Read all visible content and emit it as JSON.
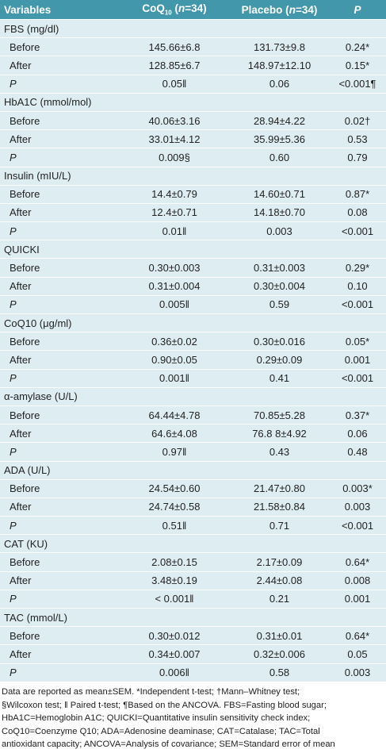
{
  "table": {
    "header": {
      "variables": "Variables",
      "coq": "CoQ",
      "coq_sub": "10",
      "open": " (",
      "n1": "n",
      "count1": "=34)",
      "placebo": "Placebo (",
      "n2": "n",
      "count2": "=34)",
      "p": "P"
    },
    "groups": [
      {
        "title": "FBS (mg/dl)",
        "rows": [
          [
            "Before",
            "145.66±6.8",
            "131.73±9.8",
            "0.24*"
          ],
          [
            "After",
            "128.85±6.7",
            "148.97±12.10",
            "0.15*"
          ],
          [
            "P",
            "0.05‖",
            "0.06",
            "<0.001¶"
          ]
        ]
      },
      {
        "title": "HbA1C (mmol/mol)",
        "rows": [
          [
            "Before",
            "40.06±3.16",
            "28.94±4.22",
            "0.02†"
          ],
          [
            "After",
            "33.01±4.12",
            "35.99±5.36",
            "0.53"
          ],
          [
            "P",
            "0.009§",
            "0.60",
            "0.79"
          ]
        ]
      },
      {
        "title": "Insulin (mIU/L)",
        "rows": [
          [
            "Before",
            "14.4±0.79",
            "14.60±0.71",
            "0.87*"
          ],
          [
            "After",
            "12.4±0.71",
            "14.18±0.70",
            "0.08"
          ],
          [
            "P",
            "0.01‖",
            "0.003",
            "<0.001"
          ]
        ]
      },
      {
        "title": "QUICKI",
        "rows": [
          [
            "Before",
            "0.30±0.003",
            "0.31±0.003",
            "0.29*"
          ],
          [
            "After",
            "0.31±0.004",
            "0.30±0.004",
            "0.10"
          ],
          [
            "P",
            "0.005‖",
            "0.59",
            "<0.001"
          ]
        ]
      },
      {
        "title": "CoQ10 (μg/ml)",
        "rows": [
          [
            "Before",
            "0.36±0.02",
            "0.30±0.016",
            "0.05*"
          ],
          [
            "After",
            "0.90±0.05",
            "0.29±0.09",
            "0.001"
          ],
          [
            "P",
            "0.001‖",
            "0.41",
            "<0.001"
          ]
        ]
      },
      {
        "title": "α-amylase (U/L)",
        "rows": [
          [
            "Before",
            "64.44±4.78",
            "70.85±5.28",
            "0.37*"
          ],
          [
            "After",
            "64.6±4.08",
            "76.8 8±4.92",
            "0.06"
          ],
          [
            "P",
            "0.97‖",
            "0.43",
            "0.48"
          ]
        ]
      },
      {
        "title": "ADA (U/L)",
        "rows": [
          [
            "Before",
            "24.54±0.60",
            "21.47±0.80",
            "0.003*"
          ],
          [
            "After",
            "24.74±0.58",
            "21.58±0.84",
            "0.003"
          ],
          [
            "P",
            "0.51‖",
            "0.71",
            "<0.001"
          ]
        ]
      },
      {
        "title": "CAT (KU)",
        "rows": [
          [
            "Before",
            "2.08±0.15",
            "2.17±0.09",
            "0.64*"
          ],
          [
            "After",
            "3.48±0.19",
            "2.44±0.08",
            "0.008"
          ],
          [
            "P",
            "< 0.001‖",
            "0.21",
            "0.001"
          ]
        ]
      },
      {
        "title": "TAC (mmol/L)",
        "rows": [
          [
            "Before",
            "0.30±0.012",
            "0.31±0.01",
            "0.64*"
          ],
          [
            "After",
            "0.34±0.007",
            "0.32±0.006",
            "0.05"
          ],
          [
            "P",
            "0.006‖",
            "0.58",
            "0.003"
          ]
        ]
      }
    ],
    "footnote": [
      "Data are reported as mean±SEM. *Independent t-test; †Mann–Whitney test;",
      "§Wilcoxon test; ‖ Paired t-test; ¶Based on the ANCOVA. FBS=Fasting blood sugar;",
      "HbA1C=Hemoglobin A1C; QUICKI=Quantitative insulin sensitivity check index;",
      "CoQ10=Coenzyme Q10; ADA=Adenosine deaminase; CAT=Catalase; TAC=Total",
      "antioxidant capacity; ANCOVA=Analysis of covariance; SEM=Standard error of mean"
    ]
  }
}
